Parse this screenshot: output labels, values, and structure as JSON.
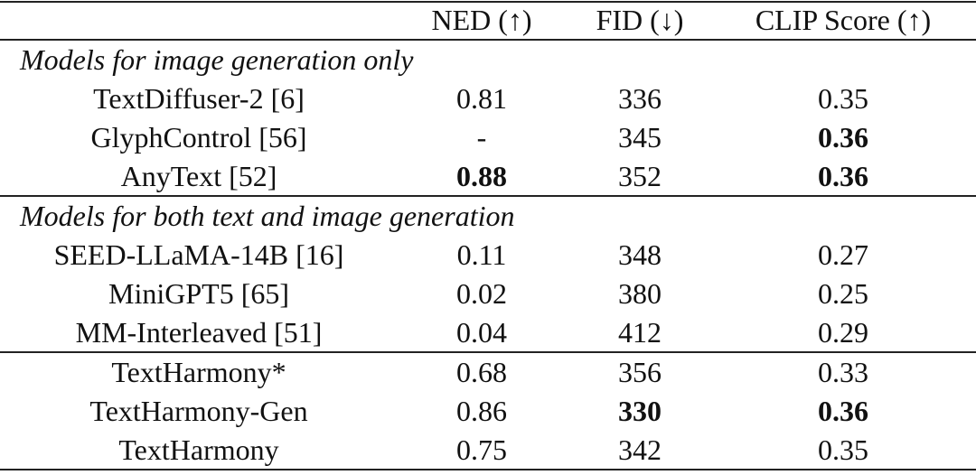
{
  "table": {
    "columns": [
      "NED (↑)",
      "FID (↓)",
      "CLIP Score (↑)"
    ],
    "sections": [
      {
        "title": "Models for image generation only",
        "rows": [
          {
            "cells": [
              "TextDiffuser-2 [6]",
              "0.81",
              "336",
              "0.35"
            ],
            "bold": []
          },
          {
            "cells": [
              "GlyphControl [56]",
              "-",
              "345",
              "0.36"
            ],
            "bold": [
              3
            ]
          },
          {
            "cells": [
              "AnyText [52]",
              "0.88",
              "352",
              "0.36"
            ],
            "bold": [
              1,
              3
            ]
          }
        ]
      },
      {
        "title": "Models for both text and image generation",
        "rows": [
          {
            "cells": [
              "SEED-LLaMA-14B [16]",
              "0.11",
              "348",
              "0.27"
            ],
            "bold": []
          },
          {
            "cells": [
              "MiniGPT5 [65]",
              "0.02",
              "380",
              "0.25"
            ],
            "bold": []
          },
          {
            "cells": [
              "MM-Interleaved [51]",
              "0.04",
              "412",
              "0.29"
            ],
            "bold": []
          }
        ]
      },
      {
        "rows": [
          {
            "cells": [
              "TextHarmony*",
              "0.68",
              "356",
              "0.33"
            ],
            "bold": []
          },
          {
            "cells": [
              "TextHarmony-Gen",
              "0.86",
              "330",
              "0.36"
            ],
            "bold": [
              2,
              3
            ]
          },
          {
            "cells": [
              "TextHarmony",
              "0.75",
              "342",
              "0.35"
            ],
            "bold": []
          }
        ]
      }
    ]
  }
}
